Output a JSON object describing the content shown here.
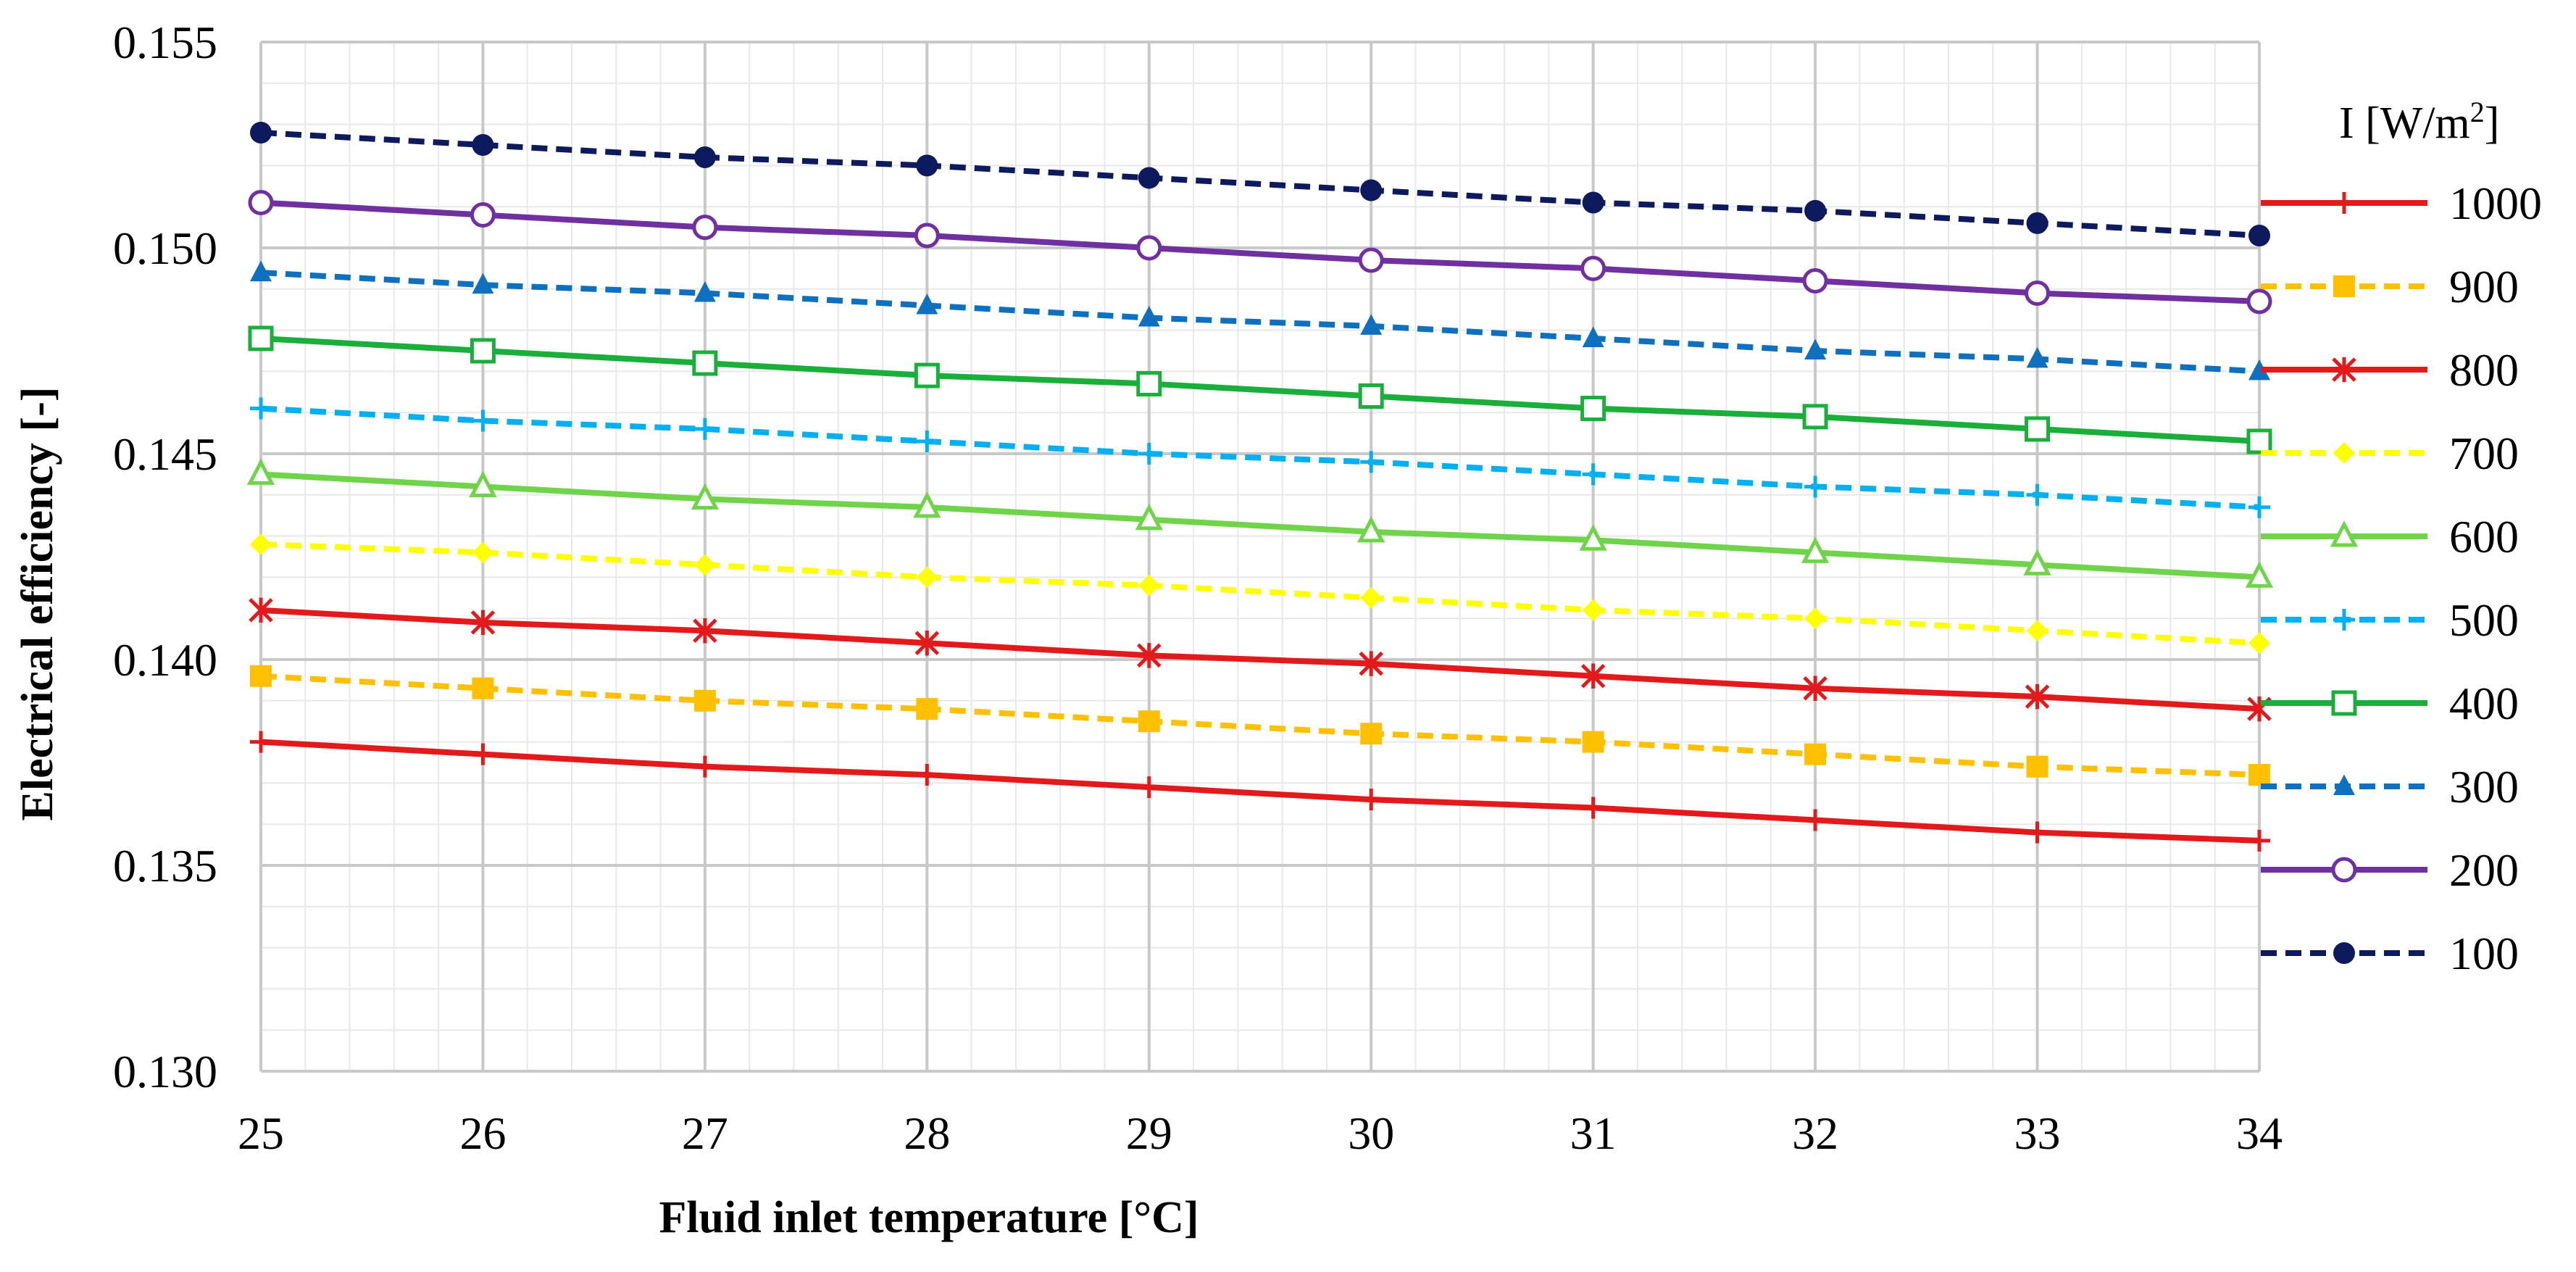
{
  "chart_data": {
    "type": "line",
    "title": "",
    "xlabel": "Fluid inlet temperature [°C]",
    "ylabel": "Electrical efficiency [-]",
    "x": [
      25,
      26,
      27,
      28,
      29,
      30,
      31,
      32,
      33,
      34
    ],
    "xlim": [
      25,
      34
    ],
    "ylim": [
      0.13,
      0.155
    ],
    "yticks": [
      0.13,
      0.135,
      0.14,
      0.145,
      0.15,
      0.155
    ],
    "ytick_labels": [
      "0.130",
      "0.135",
      "0.140",
      "0.145",
      "0.150",
      "0.155"
    ],
    "grid": true,
    "legend": {
      "title_prefix": "I [W/m",
      "title_sup": "2",
      "title_suffix": "]",
      "placement": "right"
    },
    "series": [
      {
        "name": "1000",
        "color": "#e31a1c",
        "dash": "solid",
        "marker": "plus",
        "values": [
          0.138,
          0.1377,
          0.1374,
          0.1372,
          0.1369,
          0.1366,
          0.1364,
          0.1361,
          0.1358,
          0.1356
        ]
      },
      {
        "name": "900",
        "color": "#ffc000",
        "dash": "dashed",
        "marker": "square",
        "values": [
          0.1396,
          0.1393,
          0.139,
          0.1388,
          0.1385,
          0.1382,
          0.138,
          0.1377,
          0.1374,
          0.1372
        ]
      },
      {
        "name": "800",
        "color": "#e31a1c",
        "dash": "solid",
        "marker": "asterisk",
        "values": [
          0.1412,
          0.1409,
          0.1407,
          0.1404,
          0.1401,
          0.1399,
          0.1396,
          0.1393,
          0.1391,
          0.1388
        ]
      },
      {
        "name": "700",
        "color": "#ffff00",
        "dash": "dashed",
        "marker": "diamond",
        "values": [
          0.1428,
          0.1426,
          0.1423,
          0.142,
          0.1418,
          0.1415,
          0.1412,
          0.141,
          0.1407,
          0.1404
        ]
      },
      {
        "name": "600",
        "color": "#70d44b",
        "dash": "solid",
        "marker": "triangle-open",
        "values": [
          0.1445,
          0.1442,
          0.1439,
          0.1437,
          0.1434,
          0.1431,
          0.1429,
          0.1426,
          0.1423,
          0.142
        ]
      },
      {
        "name": "500",
        "color": "#00b0f0",
        "dash": "dashed",
        "marker": "plus",
        "values": [
          0.1461,
          0.1458,
          0.1456,
          0.1453,
          0.145,
          0.1448,
          0.1445,
          0.1442,
          0.144,
          0.1437
        ]
      },
      {
        "name": "400",
        "color": "#1aae3a",
        "dash": "solid",
        "marker": "square-open",
        "values": [
          0.1478,
          0.1475,
          0.1472,
          0.1469,
          0.1467,
          0.1464,
          0.1461,
          0.1459,
          0.1456,
          0.1453
        ]
      },
      {
        "name": "300",
        "color": "#0f70c0",
        "dash": "dashed",
        "marker": "triangle",
        "values": [
          0.1494,
          0.1491,
          0.1489,
          0.1486,
          0.1483,
          0.1481,
          0.1478,
          0.1475,
          0.1473,
          0.147
        ]
      },
      {
        "name": "200",
        "color": "#7030a0",
        "dash": "solid",
        "marker": "circle-open",
        "values": [
          0.1511,
          0.1508,
          0.1505,
          0.1503,
          0.15,
          0.1497,
          0.1495,
          0.1492,
          0.1489,
          0.1487
        ]
      },
      {
        "name": "100",
        "color": "#0d1b5e",
        "dash": "dashed",
        "marker": "circle",
        "values": [
          0.1528,
          0.1525,
          0.1522,
          0.152,
          0.1517,
          0.1514,
          0.1511,
          0.1509,
          0.1506,
          0.1503
        ]
      }
    ]
  }
}
